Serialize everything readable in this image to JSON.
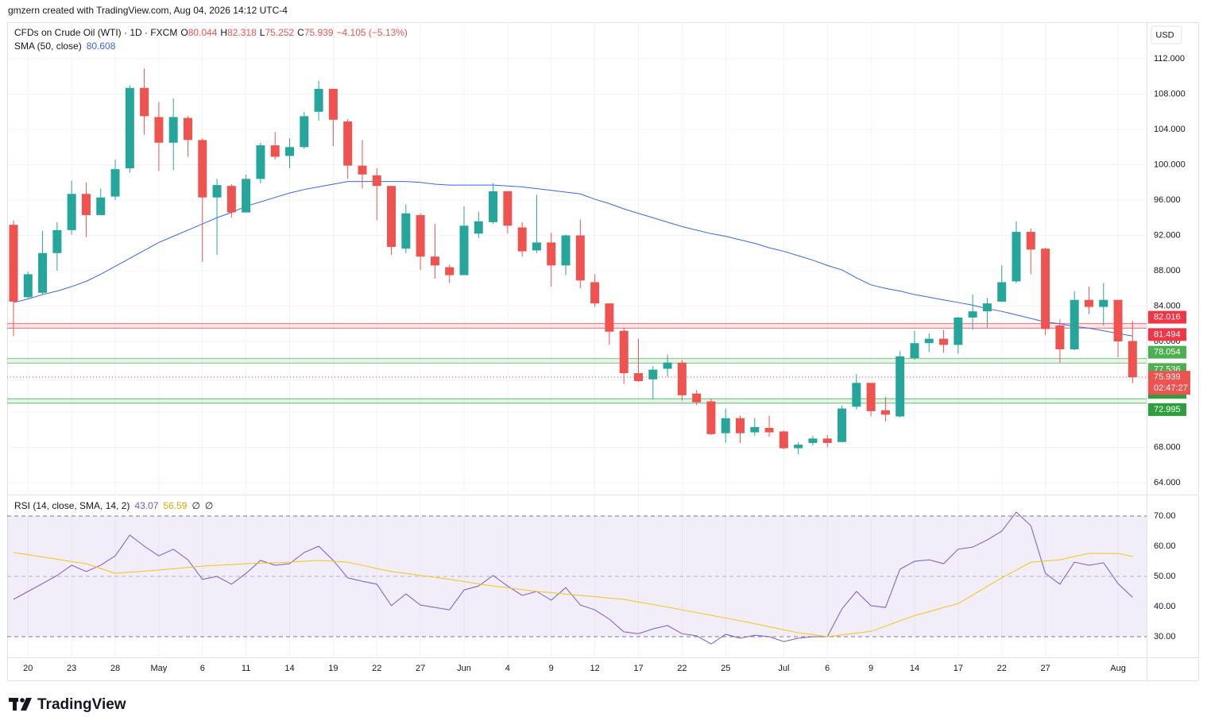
{
  "header": "gmzern created with TradingView.com, Aug 04, 2026 14:12 UTC-4",
  "footer": "TradingView",
  "chart_data": [
    {
      "type": "candlestick",
      "symbol": "CFDs on Crude Oil (WTI) · 1D · FXCM",
      "ohlc_prefixes": [
        "O",
        "H",
        "L",
        "C"
      ],
      "change": "−4.105 (−5.13%)",
      "currency": "USD",
      "countdown": "02:47:27",
      "up_color": "#26a69a",
      "down_color": "#ef5350",
      "grid": true,
      "categories": [
        null,
        "20",
        null,
        null,
        "23",
        null,
        null,
        "28",
        null,
        null,
        "May",
        null,
        null,
        "6",
        null,
        null,
        "11",
        null,
        null,
        "14",
        null,
        null,
        "19",
        null,
        null,
        "22",
        null,
        null,
        "27",
        null,
        null,
        "Jun",
        null,
        null,
        "4",
        null,
        null,
        "9",
        null,
        null,
        "12",
        null,
        null,
        "17",
        null,
        null,
        "22",
        null,
        null,
        "25",
        null,
        null,
        null,
        "Jul",
        null,
        null,
        "6",
        null,
        null,
        "9",
        null,
        null,
        "14",
        null,
        null,
        "17",
        null,
        null,
        "22",
        null,
        null,
        "27",
        null,
        null,
        null,
        null,
        "Aug",
        null
      ],
      "open": [
        93.2,
        85,
        85.5,
        90,
        92.6,
        96.7,
        94.3,
        96.4,
        99.6,
        108.7,
        105.4,
        102.5,
        105.3,
        102.8,
        96.3,
        97.6,
        94.6,
        98.4,
        102.2,
        101,
        102,
        106,
        108.6,
        104.9,
        99.9,
        98.8,
        97.6,
        90.5,
        94.3,
        89.6,
        88.4,
        87.5,
        92.2,
        93.5,
        97,
        92.9,
        90.3,
        91.2,
        88.6,
        92,
        86.7,
        84.3,
        81.2,
        76.4,
        75.7,
        76.9,
        77.6,
        74.1,
        73.2,
        69.6,
        71.3,
        69.7,
        70.2,
        69.8,
        67.9,
        68.5,
        69.0,
        68.6,
        72.6,
        75.3,
        72.2,
        71.5,
        78.1,
        79.8,
        80.3,
        79.6,
        82.7,
        83.4,
        84.5,
        86.8,
        92.4,
        90.5,
        81.8,
        79.1,
        84.7,
        83.9,
        84.7,
        80.044
      ],
      "high": [
        93.7,
        87.9,
        92.5,
        93.5,
        98.2,
        98,
        97.3,
        100.6,
        109,
        110.9,
        107.1,
        107.5,
        105.5,
        103,
        98.4,
        97.8,
        98.9,
        102.5,
        103.7,
        103,
        106,
        109.5,
        108.6,
        105.2,
        102.8,
        99.6,
        97.6,
        95.5,
        94.5,
        93.3,
        88.7,
        95.3,
        94.7,
        97.9,
        97,
        93.5,
        96.6,
        92.3,
        92.1,
        93.8,
        87.6,
        84.3,
        81.5,
        80.3,
        77.2,
        78.5,
        77.9,
        74.5,
        73.5,
        72.4,
        71.6,
        71.3,
        71.6,
        69.9,
        68.6,
        69.3,
        69.4,
        72.7,
        76.3,
        75.3,
        73.7,
        78.9,
        81.2,
        80.9,
        81.3,
        82.8,
        85.3,
        84.9,
        88.6,
        93.6,
        92.8,
        90.6,
        82.5,
        85.7,
        86.2,
        86.6,
        84.7,
        82.318
      ],
      "low": [
        80.6,
        84.9,
        85.3,
        88,
        92.1,
        91.8,
        94.3,
        96,
        99.1,
        103.4,
        99.3,
        99.4,
        100.9,
        89,
        89.8,
        94,
        94.6,
        97.9,
        100.6,
        99.6,
        101.8,
        105,
        102.1,
        98.4,
        97.3,
        93.7,
        89.8,
        90,
        88.1,
        87.1,
        86.6,
        87.5,
        91.7,
        93.3,
        92.2,
        89.6,
        90,
        86.2,
        87.5,
        86,
        83.9,
        79.6,
        75.2,
        75.4,
        73.4,
        76,
        73.3,
        72.8,
        69.4,
        68.5,
        68.5,
        69.3,
        69.2,
        67.8,
        67.2,
        68.2,
        68.0,
        68.6,
        72.3,
        71.5,
        70.9,
        71.4,
        77.9,
        78.8,
        78.7,
        78.6,
        81.3,
        81.5,
        84.5,
        86.6,
        87.6,
        80.7,
        77.6,
        79,
        83.1,
        81.8,
        78.2,
        75.252
      ],
      "close": [
        84.5,
        87.6,
        90,
        92.6,
        96.7,
        94.3,
        96.3,
        99.5,
        108.7,
        105.5,
        102.5,
        105.4,
        102.8,
        96.3,
        97.7,
        94.6,
        98.4,
        102.2,
        100.9,
        102,
        105.5,
        108.6,
        105.1,
        99.9,
        98.9,
        97.6,
        90.7,
        94.5,
        89.6,
        88.6,
        87.5,
        93.1,
        93.6,
        97,
        93.1,
        90.2,
        91.2,
        88.6,
        92,
        86.9,
        84.3,
        81.1,
        76.4,
        75.5,
        76.8,
        77.6,
        73.9,
        73.1,
        69.5,
        71.3,
        69.6,
        70.3,
        69.7,
        67.9,
        68.3,
        69.0,
        68.5,
        72.4,
        75.3,
        72.1,
        71.7,
        78.3,
        79.8,
        80.3,
        79.6,
        82.7,
        83.4,
        84.3,
        86.7,
        92.4,
        90.4,
        81.4,
        79.1,
        84.7,
        83.9,
        84.7,
        80.0,
        75.939
      ],
      "series": [
        {
          "name": "SMA (50, close)",
          "color": "#3b66e0",
          "values": [
            84.4,
            84.8,
            85.3,
            85.7,
            86.2,
            86.8,
            87.6,
            88.5,
            89.4,
            90.3,
            91.2,
            91.9,
            92.6,
            93.3,
            94.0,
            94.6,
            95.3,
            95.8,
            96.3,
            96.8,
            97.2,
            97.5,
            97.8,
            98.1,
            98.1,
            98.1,
            98.1,
            98.1,
            98.0,
            97.8,
            97.7,
            97.7,
            97.7,
            97.7,
            97.6,
            97.5,
            97.3,
            97.1,
            96.9,
            96.7,
            96.1,
            95.6,
            95.0,
            94.5,
            94.0,
            93.5,
            93.0,
            92.6,
            92.2,
            91.9,
            91.5,
            91.1,
            90.6,
            90.2,
            89.7,
            89.2,
            88.6,
            88.1,
            87.2,
            86.4,
            86.0,
            85.7,
            85.3,
            85.0,
            84.7,
            84.4,
            84.1,
            83.7,
            83.4,
            83.0,
            82.6,
            82.2,
            82.0,
            81.7,
            81.5,
            81.2,
            80.9,
            80.608
          ]
        }
      ],
      "zones": [
        {
          "color": "#f23645",
          "values": [
            82.016,
            81.494
          ]
        },
        {
          "color": "#4caf50",
          "values": [
            78.054,
            77.536
          ]
        },
        {
          "color": "#2e9e3e",
          "values": [
            73.505,
            72.995
          ]
        }
      ],
      "ylim": [
        62.65,
        116.14
      ],
      "yticks": [
        {
          "value": 64,
          "label": "64.000"
        },
        {
          "value": 68,
          "label": "68.000"
        },
        {
          "value": 72,
          "label": "72.000"
        },
        {
          "value": 76,
          "label": "76.000"
        },
        {
          "value": 80,
          "label": "80.000"
        },
        {
          "value": 84,
          "label": "84.000"
        },
        {
          "value": 88,
          "label": "88.000"
        },
        {
          "value": 92,
          "label": "92.000"
        },
        {
          "value": 96,
          "label": "96.000"
        },
        {
          "value": 100,
          "label": "100.000"
        },
        {
          "value": 104,
          "label": "104.000"
        },
        {
          "value": 108,
          "label": "108.000"
        },
        {
          "value": 112,
          "label": "112.000"
        }
      ]
    },
    {
      "type": "line",
      "title": "RSI (14, close, SMA, 14, 2)",
      "legend_suffix": [
        "∅",
        "∅"
      ],
      "band": [
        70,
        30
      ],
      "band_color": "#7e57c2",
      "midline": 50,
      "series": [
        {
          "color": "#7e57c2",
          "values": [
            42.4,
            45,
            47.6,
            50.3,
            53.7,
            51.6,
            53.7,
            56.8,
            63.7,
            60,
            56.8,
            59,
            55.5,
            49,
            50,
            47.4,
            51,
            55.3,
            53.7,
            54.2,
            57.9,
            60,
            55.3,
            49.5,
            48.4,
            47.4,
            40.3,
            44.2,
            40.5,
            39.7,
            38.9,
            45.5,
            46.8,
            50.3,
            46.8,
            43.7,
            45,
            42.1,
            46.3,
            40.5,
            38.9,
            35.8,
            31.6,
            31,
            32.6,
            33.7,
            31,
            30.3,
            27.6,
            30.8,
            29.5,
            30.5,
            30,
            28.4,
            29.5,
            30,
            30,
            39.2,
            45,
            40.3,
            39.7,
            52.4,
            55,
            55.5,
            54.2,
            59,
            59.7,
            62.1,
            65,
            71.3,
            66.8,
            51,
            47.4,
            54.7,
            53.7,
            54.5,
            47.6,
            43.07
          ]
        },
        {
          "color": "#f2c416",
          "values": [
            57.9,
            57.2,
            56.4,
            55.7,
            54.9,
            54.2,
            52.6,
            51.0,
            51.4,
            51.7,
            52.1,
            52.5,
            53.0,
            53.4,
            53.7,
            53.9,
            54.2,
            54.4,
            54.5,
            54.7,
            55.0,
            55.3,
            55.0,
            54.7,
            53.7,
            52.6,
            51.6,
            51.0,
            50.3,
            49.7,
            49.0,
            48.3,
            47.5,
            46.8,
            46.2,
            45.6,
            45.0,
            44.6,
            44.1,
            43.7,
            43.3,
            42.8,
            42.4,
            41.5,
            40.7,
            39.8,
            38.9,
            38.0,
            37.1,
            36.2,
            35.3,
            34.3,
            33.3,
            32.3,
            31.3,
            30.7,
            30.0,
            30.6,
            31.2,
            31.8,
            33.5,
            35.3,
            37.0,
            38.3,
            39.7,
            41.0,
            43.8,
            46.7,
            49.5,
            52.1,
            54.7,
            55.1,
            55.5,
            56.6,
            57.6,
            57.6,
            57.6,
            56.59
          ]
        }
      ],
      "ylim": [
        23.16,
        76.84
      ],
      "yticks": [
        {
          "value": 30,
          "label": "30.00"
        },
        {
          "value": 40,
          "label": "40.00"
        },
        {
          "value": 50,
          "label": "50.00"
        },
        {
          "value": 60,
          "label": "60.00"
        },
        {
          "value": 70,
          "label": "70.00"
        }
      ]
    }
  ]
}
